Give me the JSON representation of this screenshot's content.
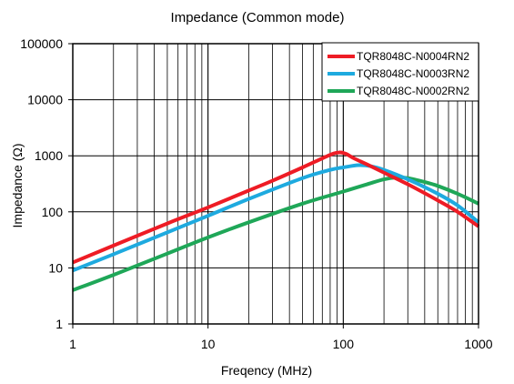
{
  "chart_data": {
    "type": "line",
    "title": "Impedance  (Common mode)",
    "xlabel": "Freqency (MHz)",
    "ylabel": "Impedance  (Ω)",
    "x_scale": "log",
    "y_scale": "log",
    "xlim": [
      1,
      1000
    ],
    "ylim": [
      1,
      100000
    ],
    "grid": true,
    "legend_position": "top-right",
    "x_ticks": [
      {
        "value": 1,
        "label": "1"
      },
      {
        "value": 10,
        "label": "10"
      },
      {
        "value": 100,
        "label": "100"
      },
      {
        "value": 1000,
        "label": "1000"
      }
    ],
    "y_ticks": [
      {
        "value": 1,
        "label": "1"
      },
      {
        "value": 10,
        "label": "10"
      },
      {
        "value": 100,
        "label": "100"
      },
      {
        "value": 1000,
        "label": "1000"
      },
      {
        "value": 10000,
        "label": "10000"
      },
      {
        "value": 100000,
        "label": "100000"
      }
    ],
    "series": [
      {
        "name": "TQR8048C-N0004RN2",
        "color": "#ee1c25",
        "points": [
          [
            1,
            12.5
          ],
          [
            2,
            25
          ],
          [
            5,
            62
          ],
          [
            10,
            120
          ],
          [
            20,
            240
          ],
          [
            30,
            360
          ],
          [
            50,
            620
          ],
          [
            70,
            900
          ],
          [
            85,
            1100
          ],
          [
            95,
            1150
          ],
          [
            105,
            1080
          ],
          [
            120,
            900
          ],
          [
            150,
            700
          ],
          [
            200,
            500
          ],
          [
            300,
            310
          ],
          [
            500,
            160
          ],
          [
            700,
            100
          ],
          [
            1000,
            55
          ]
        ]
      },
      {
        "name": "TQR8048C-N0003RN2",
        "color": "#1eaadf",
        "points": [
          [
            1,
            9
          ],
          [
            2,
            17.5
          ],
          [
            5,
            43
          ],
          [
            10,
            85
          ],
          [
            20,
            170
          ],
          [
            50,
            400
          ],
          [
            80,
            560
          ],
          [
            100,
            620
          ],
          [
            130,
            680
          ],
          [
            160,
            650
          ],
          [
            200,
            560
          ],
          [
            300,
            380
          ],
          [
            500,
            210
          ],
          [
            700,
            130
          ],
          [
            1000,
            65
          ]
        ]
      },
      {
        "name": "TQR8048C-N0002RN2",
        "color": "#1fa758",
        "points": [
          [
            1,
            4
          ],
          [
            2,
            7.5
          ],
          [
            5,
            18
          ],
          [
            10,
            35
          ],
          [
            20,
            65
          ],
          [
            50,
            140
          ],
          [
            100,
            230
          ],
          [
            150,
            310
          ],
          [
            200,
            380
          ],
          [
            250,
            410
          ],
          [
            300,
            400
          ],
          [
            400,
            340
          ],
          [
            500,
            290
          ],
          [
            700,
            210
          ],
          [
            1000,
            140
          ]
        ]
      }
    ]
  }
}
